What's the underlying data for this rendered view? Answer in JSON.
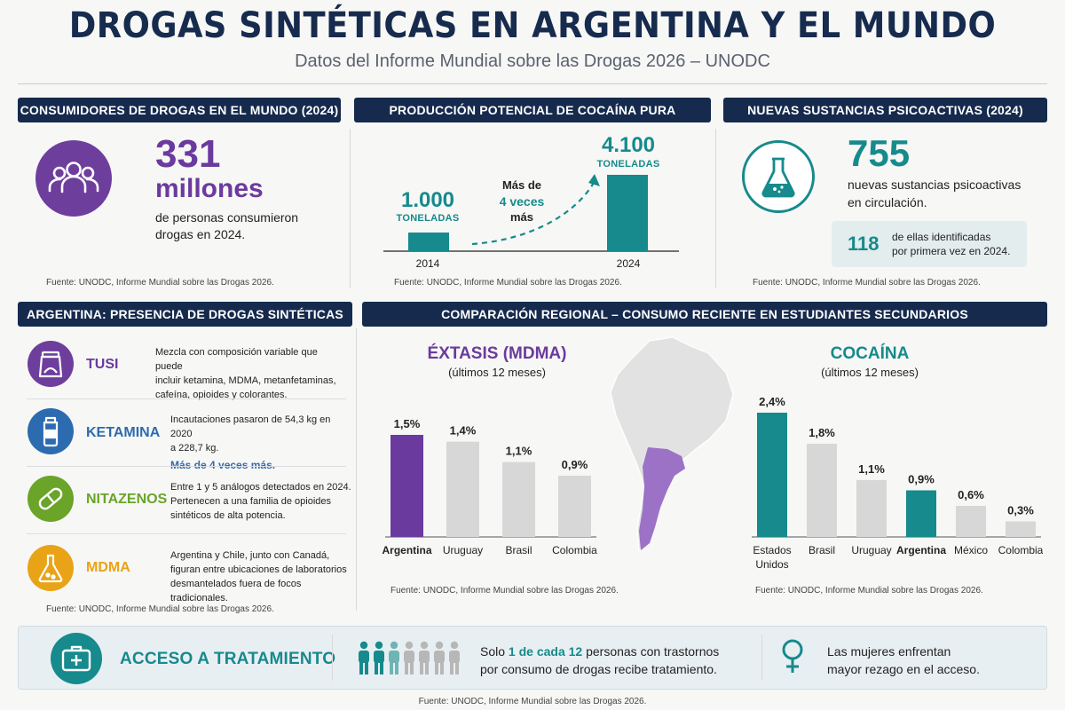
{
  "header": {
    "title": "DROGAS SINTÉTICAS EN ARGENTINA Y EL MUNDO",
    "subtitle": "Datos del Informe Mundial sobre las Drogas 2026 – UNODC"
  },
  "colors": {
    "navy": "#152a4d",
    "purple": "#6b3a9e",
    "teal": "#168a8c",
    "grey_bar": "#d7d7d7",
    "amber": "#e8a317",
    "green": "#6aa428",
    "blue": "#2d6bb0"
  },
  "source": "Fuente: UNODC, Informe Mundial sobre las Drogas 2026.",
  "panel_consumers": {
    "header": "CONSUMIDORES DE DROGAS EN EL MUNDO (2024)",
    "icon": "users-icon",
    "number": "331",
    "unit": "millones",
    "desc1": "de personas consumieron",
    "desc2": "drogas en 2024."
  },
  "panel_cocaine": {
    "header": "PRODUCCIÓN POTENCIAL DE COCAÍNA PURA",
    "unit_label": "TONELADAS",
    "more_line1": "Más de",
    "more_line2": "4 veces",
    "more_line3": "más"
  },
  "panel_nps": {
    "header": "NUEVAS SUSTANCIAS PSICOACTIVAS (2024)",
    "icon": "flask-icon",
    "number": "755",
    "desc1": "nuevas sustancias psicoactivas",
    "desc2": "en circulación.",
    "box_number": "118",
    "box_text1": "de ellas identificadas",
    "box_text2": "por primera vez en 2024."
  },
  "argentina": {
    "header": "ARGENTINA: PRESENCIA DE DROGAS SINTÉTICAS",
    "items": [
      {
        "name": "TUSI",
        "icon": "powder-jar-icon",
        "lines": [
          "Mezcla con composición variable que puede",
          "incluir ketamina, MDMA, metanfetaminas,",
          "cafeína, opioides y colorantes."
        ],
        "highlight": ""
      },
      {
        "name": "KETAMINA",
        "icon": "vial-icon",
        "lines": [
          "Incautaciones pasaron de 54,3 kg en 2020",
          "a 228,7 kg."
        ],
        "highlight": "Más de 4 veces más."
      },
      {
        "name": "NITAZENOS",
        "icon": "pill-icon",
        "lines": [
          "Entre 1 y 5 análogos detectados en 2024.",
          "Pertenecen a una familia de opioides",
          "sintéticos de alta potencia."
        ],
        "highlight": ""
      },
      {
        "name": "MDMA",
        "icon": "lab-flask-icon",
        "lines": [
          "Argentina y Chile, junto con Canadá,",
          "figuran entre ubicaciones de laboratorios",
          "desmantelados fuera de focos tradicionales."
        ],
        "highlight": ""
      }
    ]
  },
  "regional": {
    "header": "COMPARACIÓN REGIONAL – CONSUMO RECIENTE EN ESTUDIANTES SECUNDARIOS",
    "map_icon": "south-america-map-icon"
  },
  "treatment": {
    "title": "ACCESO A TRATAMIENTO",
    "icon": "medical-kit-icon",
    "people_icon": "people-icon",
    "text_pre": "Solo ",
    "text_hl": "1 de cada 12",
    "text_post1": " personas con trastornos",
    "text_post2": "por consumo de drogas recibe tratamiento.",
    "women_icon": "female-symbol-icon",
    "women1": "Las mujeres enfrentan",
    "women2": "mayor rezago en el acceso."
  },
  "chart_data": [
    {
      "type": "bar",
      "title": "",
      "categories": [
        "2014",
        "2024"
      ],
      "values": [
        1000,
        4100
      ],
      "value_labels": [
        "1.000",
        "4.100"
      ],
      "ylabel": "TONELADAS"
    },
    {
      "type": "bar",
      "title": "ÉXTASIS (MDMA)",
      "subtitle": "(últimos 12 meses)",
      "categories": [
        "Argentina",
        "Uruguay",
        "Brasil",
        "Colombia"
      ],
      "values": [
        1.5,
        1.4,
        1.1,
        0.9
      ],
      "value_labels": [
        "1,5%",
        "1,4%",
        "1,1%",
        "0,9%"
      ],
      "highlight": "Argentina",
      "ylim": [
        0,
        1.5
      ]
    },
    {
      "type": "bar",
      "title": "COCAÍNA",
      "subtitle": "(últimos 12 meses)",
      "categories": [
        "Estados Unidos",
        "Brasil",
        "Uruguay",
        "Argentina",
        "México",
        "Colombia"
      ],
      "values": [
        2.4,
        1.8,
        1.1,
        0.9,
        0.6,
        0.3
      ],
      "value_labels": [
        "2,4%",
        "1,8%",
        "1,1%",
        "0,9%",
        "0,6%",
        "0,3%"
      ],
      "highlight": [
        "Estados Unidos",
        "Argentina"
      ],
      "ylim": [
        0,
        2.4
      ]
    }
  ]
}
